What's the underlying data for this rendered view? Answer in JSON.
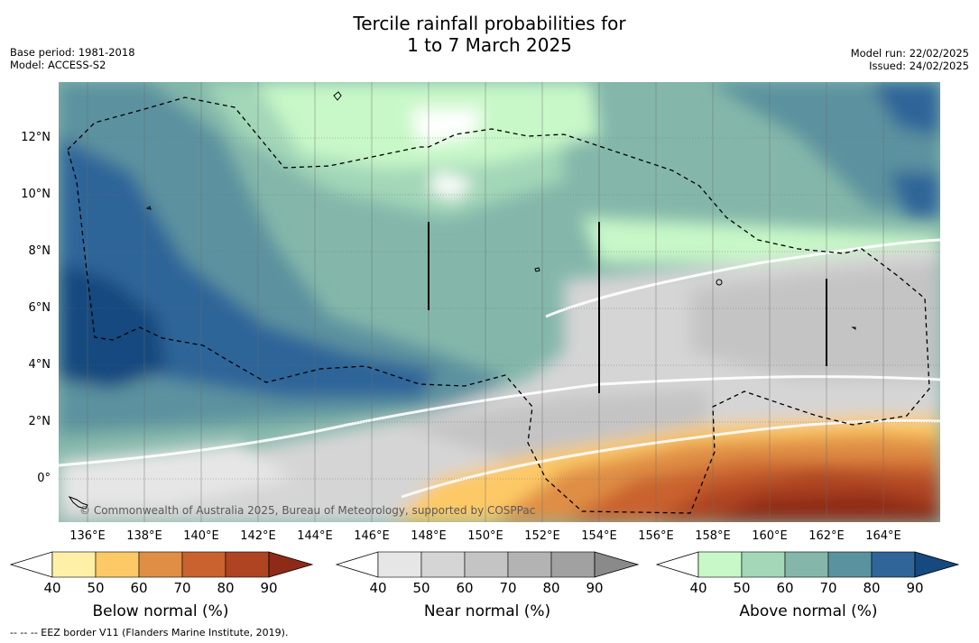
{
  "title": {
    "line1": "Tercile rainfall probabilities for",
    "line2": "1 to 7 March 2025"
  },
  "meta_left": {
    "base_period": "Base period: 1981-2018",
    "model": "Model: ACCESS-S2"
  },
  "meta_right": {
    "model_run": "Model run: 22/02/2025",
    "issued": "Issued: 24/02/2025"
  },
  "axes": {
    "lat_labels": [
      "12°N",
      "10°N",
      "8°N",
      "6°N",
      "4°N",
      "2°N",
      "0°"
    ],
    "lon_labels": [
      "136°E",
      "138°E",
      "140°E",
      "142°E",
      "144°E",
      "146°E",
      "148°E",
      "150°E",
      "152°E",
      "154°E",
      "156°E",
      "158°E",
      "160°E",
      "162°E",
      "164°E"
    ]
  },
  "copyright": "© Commonwealth of Australia 2025, Bureau of Meteorology, supported by COSPPac",
  "colorbars": {
    "below": {
      "title": "Below normal (%)",
      "ticks": [
        "40",
        "50",
        "60",
        "70",
        "80",
        "90"
      ],
      "colors": [
        "#fff0a8",
        "#fdc966",
        "#df8e45",
        "#c9622f",
        "#ae4422",
        "#8f2a18"
      ]
    },
    "near": {
      "title": "Near normal (%)",
      "ticks": [
        "40",
        "50",
        "60",
        "70",
        "80",
        "90"
      ],
      "colors": [
        "#e6e6e6",
        "#d5d5d5",
        "#c4c4c4",
        "#b3b3b3",
        "#a1a1a1",
        "#8a8a8a"
      ]
    },
    "above": {
      "title": "Above normal (%)",
      "ticks": [
        "40",
        "50",
        "60",
        "70",
        "80",
        "90"
      ],
      "colors": [
        "#c8f8c8",
        "#a3d7b8",
        "#84b7aa",
        "#5b929f",
        "#2f6599",
        "#16497f"
      ]
    }
  },
  "footer": "--  --  -- EEZ border V11 (Flanders Marine Institute, 2019)."
}
